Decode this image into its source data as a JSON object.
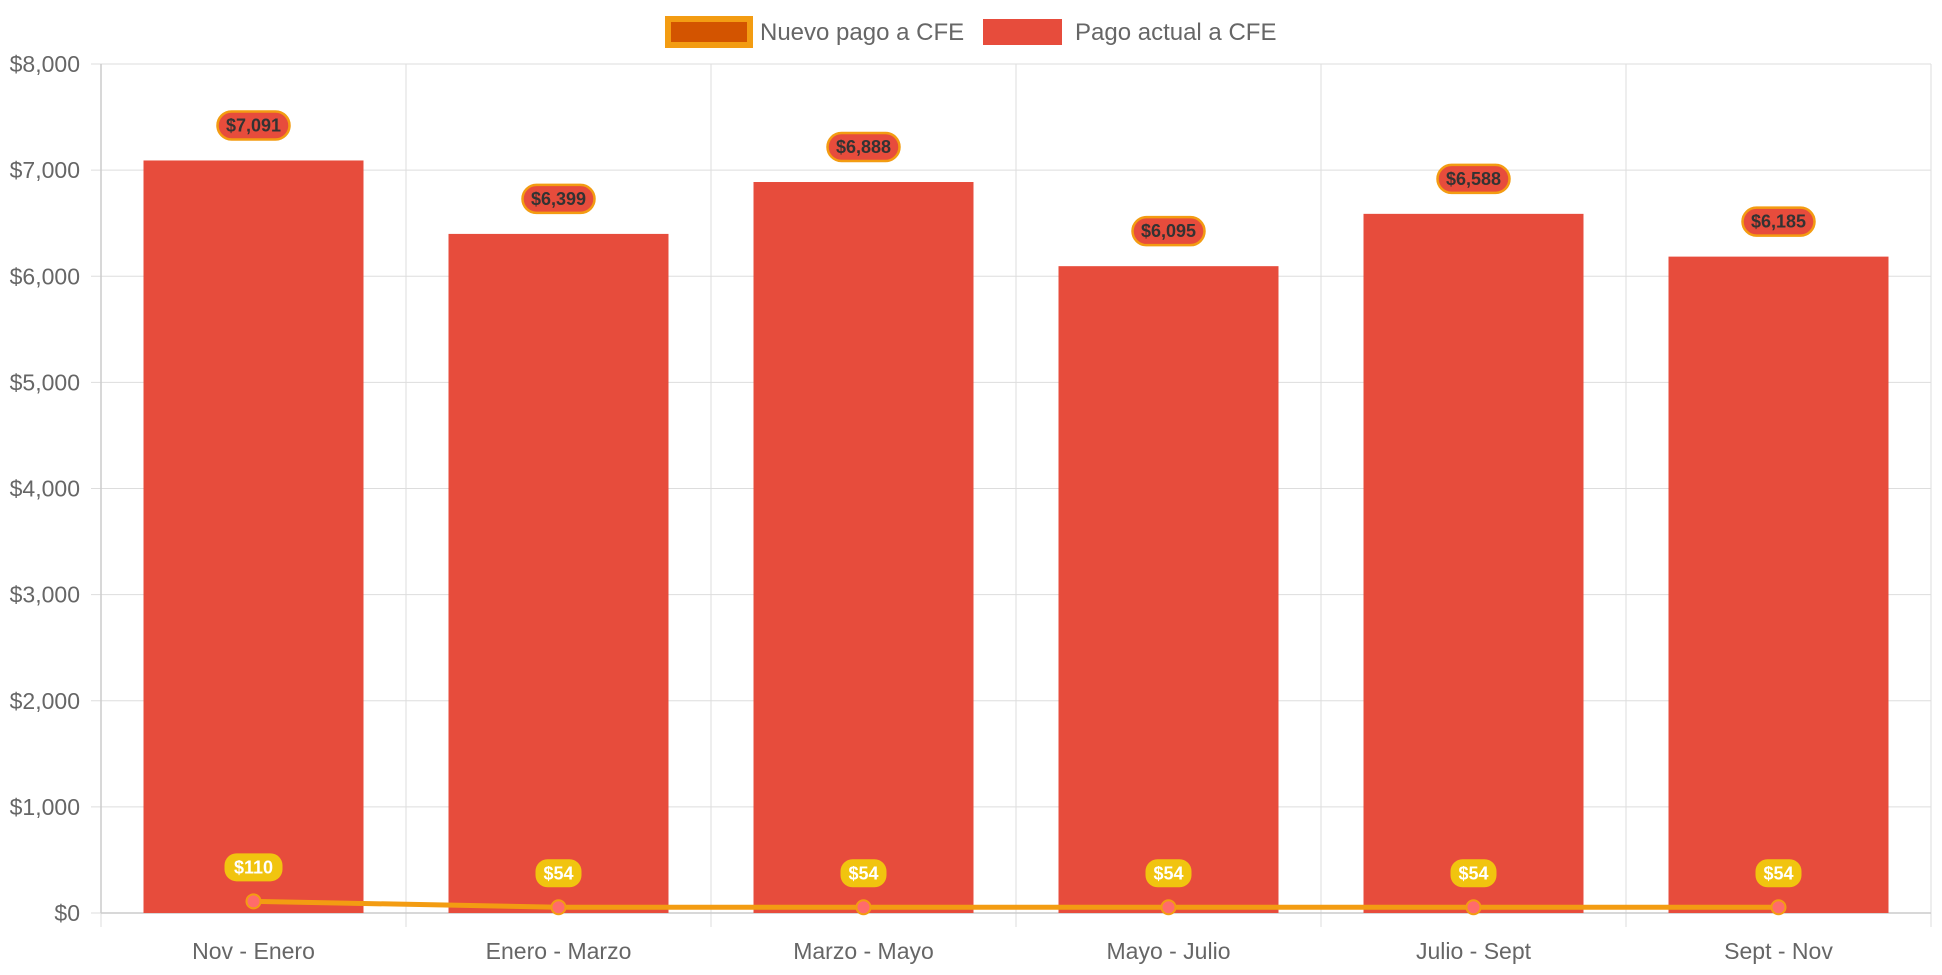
{
  "chart_data": {
    "type": "bar",
    "categories": [
      "Nov - Enero",
      "Enero - Marzo",
      "Marzo - Mayo",
      "Mayo - Julio",
      "Julio - Sept",
      "Sept - Nov"
    ],
    "series": [
      {
        "name": "Nuevo pago a CFE",
        "type": "line",
        "values": [
          110,
          54,
          54,
          54,
          54,
          54
        ],
        "labels": [
          "$110",
          "$54",
          "$54",
          "$54",
          "$54",
          "$54"
        ],
        "color": "#f39c12",
        "legend_fill": "#d35400",
        "point_color": "#ff6b6b",
        "label_bg": "#f1c40f",
        "label_text_color": "#ffffff"
      },
      {
        "name": "Pago actual a CFE",
        "type": "bar",
        "values": [
          7091,
          6399,
          6888,
          6095,
          6588,
          6185
        ],
        "labels": [
          "$7,091",
          "$6,399",
          "$6,888",
          "$6,095",
          "$6,588",
          "$6,185"
        ],
        "color": "#e74c3c",
        "label_border": "#f39c12",
        "label_text_color": "#333333"
      }
    ],
    "y_ticks": [
      {
        "value": 0,
        "label": "$0"
      },
      {
        "value": 1000,
        "label": "$1,000"
      },
      {
        "value": 2000,
        "label": "$2,000"
      },
      {
        "value": 3000,
        "label": "$3,000"
      },
      {
        "value": 4000,
        "label": "$4,000"
      },
      {
        "value": 5000,
        "label": "$5,000"
      },
      {
        "value": 6000,
        "label": "$6,000"
      },
      {
        "value": 7000,
        "label": "$7,000"
      },
      {
        "value": 8000,
        "label": "$8,000"
      }
    ],
    "ylim": [
      0,
      8000
    ],
    "title": "",
    "xlabel": "",
    "ylabel": "",
    "grid": true,
    "legend_position": "top-center",
    "colors": {
      "grid": "#dddddd",
      "axis_text": "#666666"
    }
  }
}
